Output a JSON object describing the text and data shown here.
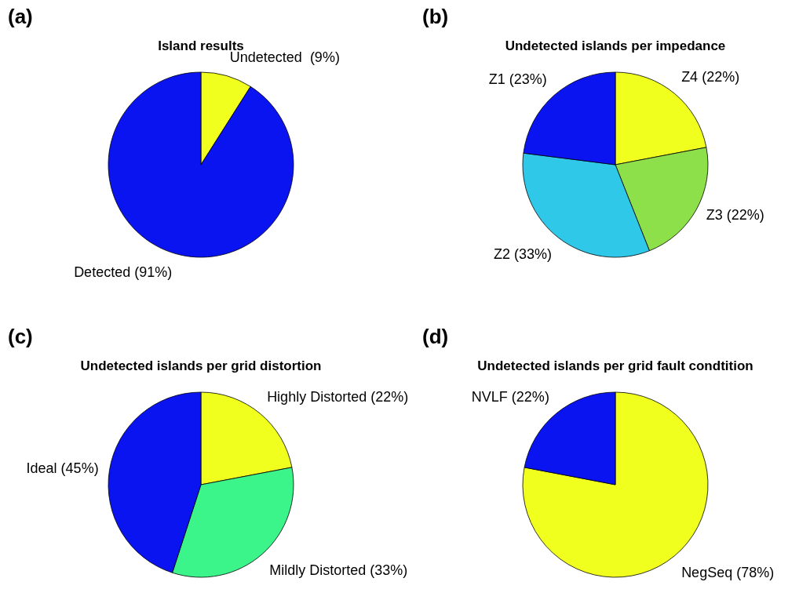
{
  "chart_data": [
    {
      "type": "pie",
      "title": "Island results",
      "annotations": [
        "(a)"
      ],
      "categories": [
        "Undetected  (9%)",
        "Detected (91%)"
      ],
      "values": [
        9,
        91
      ],
      "colors": [
        "#f0ff1e",
        "#0a14f0"
      ]
    },
    {
      "type": "pie",
      "title": "Undetected islands per impedance",
      "annotations": [
        "(b)"
      ],
      "categories": [
        "Z4 (22%)",
        "Z3 (22%)",
        "Z2 (33%)",
        "Z1 (23%)"
      ],
      "values": [
        22,
        22,
        33,
        23
      ],
      "colors": [
        "#f0ff1e",
        "#8ee04a",
        "#30c8e8",
        "#0a14f0"
      ]
    },
    {
      "type": "pie",
      "title": "Undetected islands per grid distortion",
      "annotations": [
        "(c)"
      ],
      "categories": [
        "Highly Distorted (22%)",
        "Mildly Distorted (33%)",
        "Ideal (45%)"
      ],
      "values": [
        22,
        33,
        45
      ],
      "colors": [
        "#f0ff1e",
        "#3cf58a",
        "#0a14f0"
      ]
    },
    {
      "type": "pie",
      "title": "Undetected islands per grid fault condtition",
      "annotations": [
        "(d)"
      ],
      "categories": [
        "NegSeq (78%)",
        "NVLF (22%)"
      ],
      "values": [
        78,
        22
      ],
      "colors": [
        "#f0ff1e",
        "#0a14f0"
      ]
    }
  ]
}
